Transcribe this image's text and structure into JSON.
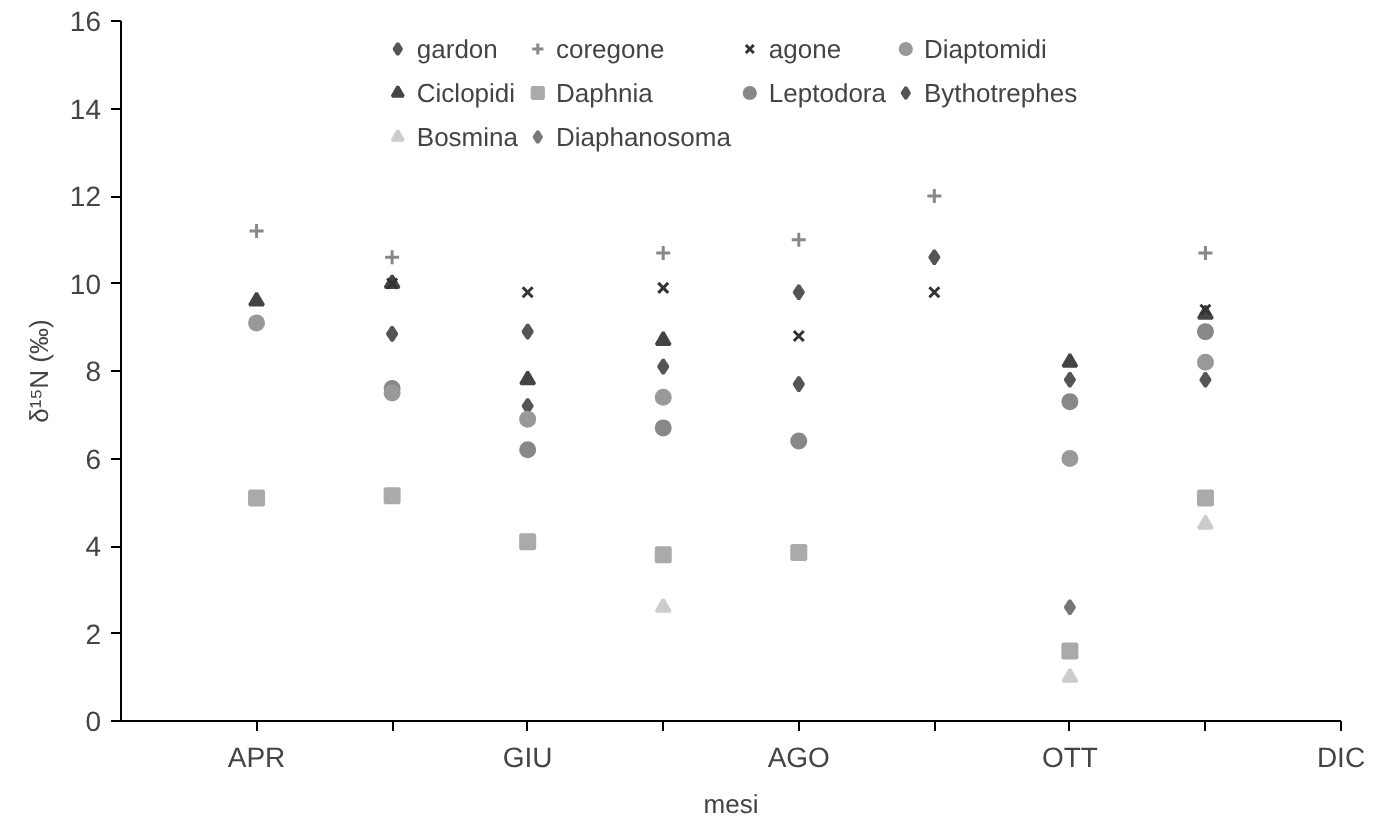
{
  "chart_data": {
    "type": "scatter",
    "xlabel": "mesi",
    "ylabel": "δ¹⁵N (‰)",
    "categories": [
      "APR",
      null,
      "GIU",
      null,
      "AGO",
      null,
      "OTT",
      null,
      "DIC"
    ],
    "ylim": [
      0,
      16
    ],
    "yticks": [
      0,
      2,
      4,
      6,
      8,
      10,
      12,
      14,
      16
    ],
    "grid": false,
    "legend": "top",
    "series": [
      {
        "name": "gardon",
        "color": "#555555",
        "marker": "diamond",
        "values": [
          null,
          null,
          8.9,
          null,
          9.8,
          10.6,
          null,
          null,
          null
        ]
      },
      {
        "name": "coregone",
        "color": "#888888",
        "marker": "cross",
        "values": [
          11.2,
          10.6,
          null,
          10.7,
          11.0,
          12.0,
          null,
          10.7,
          null
        ]
      },
      {
        "name": "agone",
        "color": "#333333",
        "marker": "x",
        "values": [
          null,
          10.0,
          9.8,
          9.9,
          8.8,
          9.8,
          null,
          9.4,
          null
        ]
      },
      {
        "name": "Diaptomidi",
        "color": "#999999",
        "marker": "circle",
        "values": [
          9.1,
          7.5,
          6.9,
          7.4,
          null,
          null,
          6.0,
          8.2,
          null
        ]
      },
      {
        "name": "Ciclopidi",
        "color": "#444444",
        "marker": "triangle",
        "values": [
          9.6,
          10.0,
          7.8,
          8.7,
          null,
          null,
          8.2,
          9.3,
          null
        ]
      },
      {
        "name": "Daphnia",
        "color": "#aaaaaa",
        "marker": "square",
        "values": [
          5.1,
          5.15,
          4.1,
          3.8,
          3.85,
          null,
          1.6,
          5.1,
          null
        ]
      },
      {
        "name": "Leptodora",
        "color": "#888888",
        "marker": "circle",
        "values": [
          null,
          7.6,
          6.2,
          6.7,
          6.4,
          null,
          7.3,
          8.9,
          null
        ]
      },
      {
        "name": "Bythotrephes",
        "color": "#555555",
        "marker": "diamond",
        "values": [
          null,
          8.85,
          7.2,
          8.1,
          7.7,
          null,
          7.8,
          7.8,
          null
        ]
      },
      {
        "name": "Bosmina",
        "color": "#cccccc",
        "marker": "triangle",
        "values": [
          null,
          null,
          null,
          2.6,
          null,
          null,
          1.0,
          4.5,
          null
        ]
      },
      {
        "name": "Diaphanosoma",
        "color": "#777777",
        "marker": "diamond",
        "values": [
          null,
          null,
          null,
          null,
          null,
          null,
          2.6,
          null,
          null
        ]
      }
    ]
  }
}
